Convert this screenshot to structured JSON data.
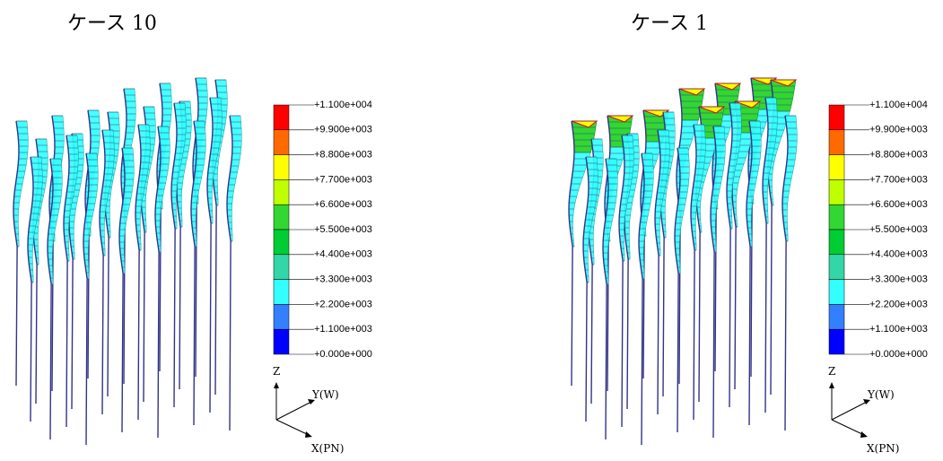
{
  "panels": [
    {
      "title": "ケース 10"
    },
    {
      "title": "ケース 1"
    }
  ],
  "legend": {
    "labels": [
      "+1.100e+004",
      "+9.900e+003",
      "+8.800e+003",
      "+7.700e+003",
      "+6.600e+003",
      "+5.500e+003",
      "+4.400e+003",
      "+3.300e+003",
      "+2.200e+003",
      "+1.100e+003",
      "+0.000e+000"
    ],
    "colors": [
      "#ff0000",
      "#ff6a00",
      "#ffff00",
      "#bfff00",
      "#33d633",
      "#00cc33",
      "#33d6a6",
      "#33ffff",
      "#3380ff",
      "#0000ff"
    ]
  },
  "axes": {
    "z": "Z",
    "y": "Y(W)",
    "x": "X(PN)"
  }
}
